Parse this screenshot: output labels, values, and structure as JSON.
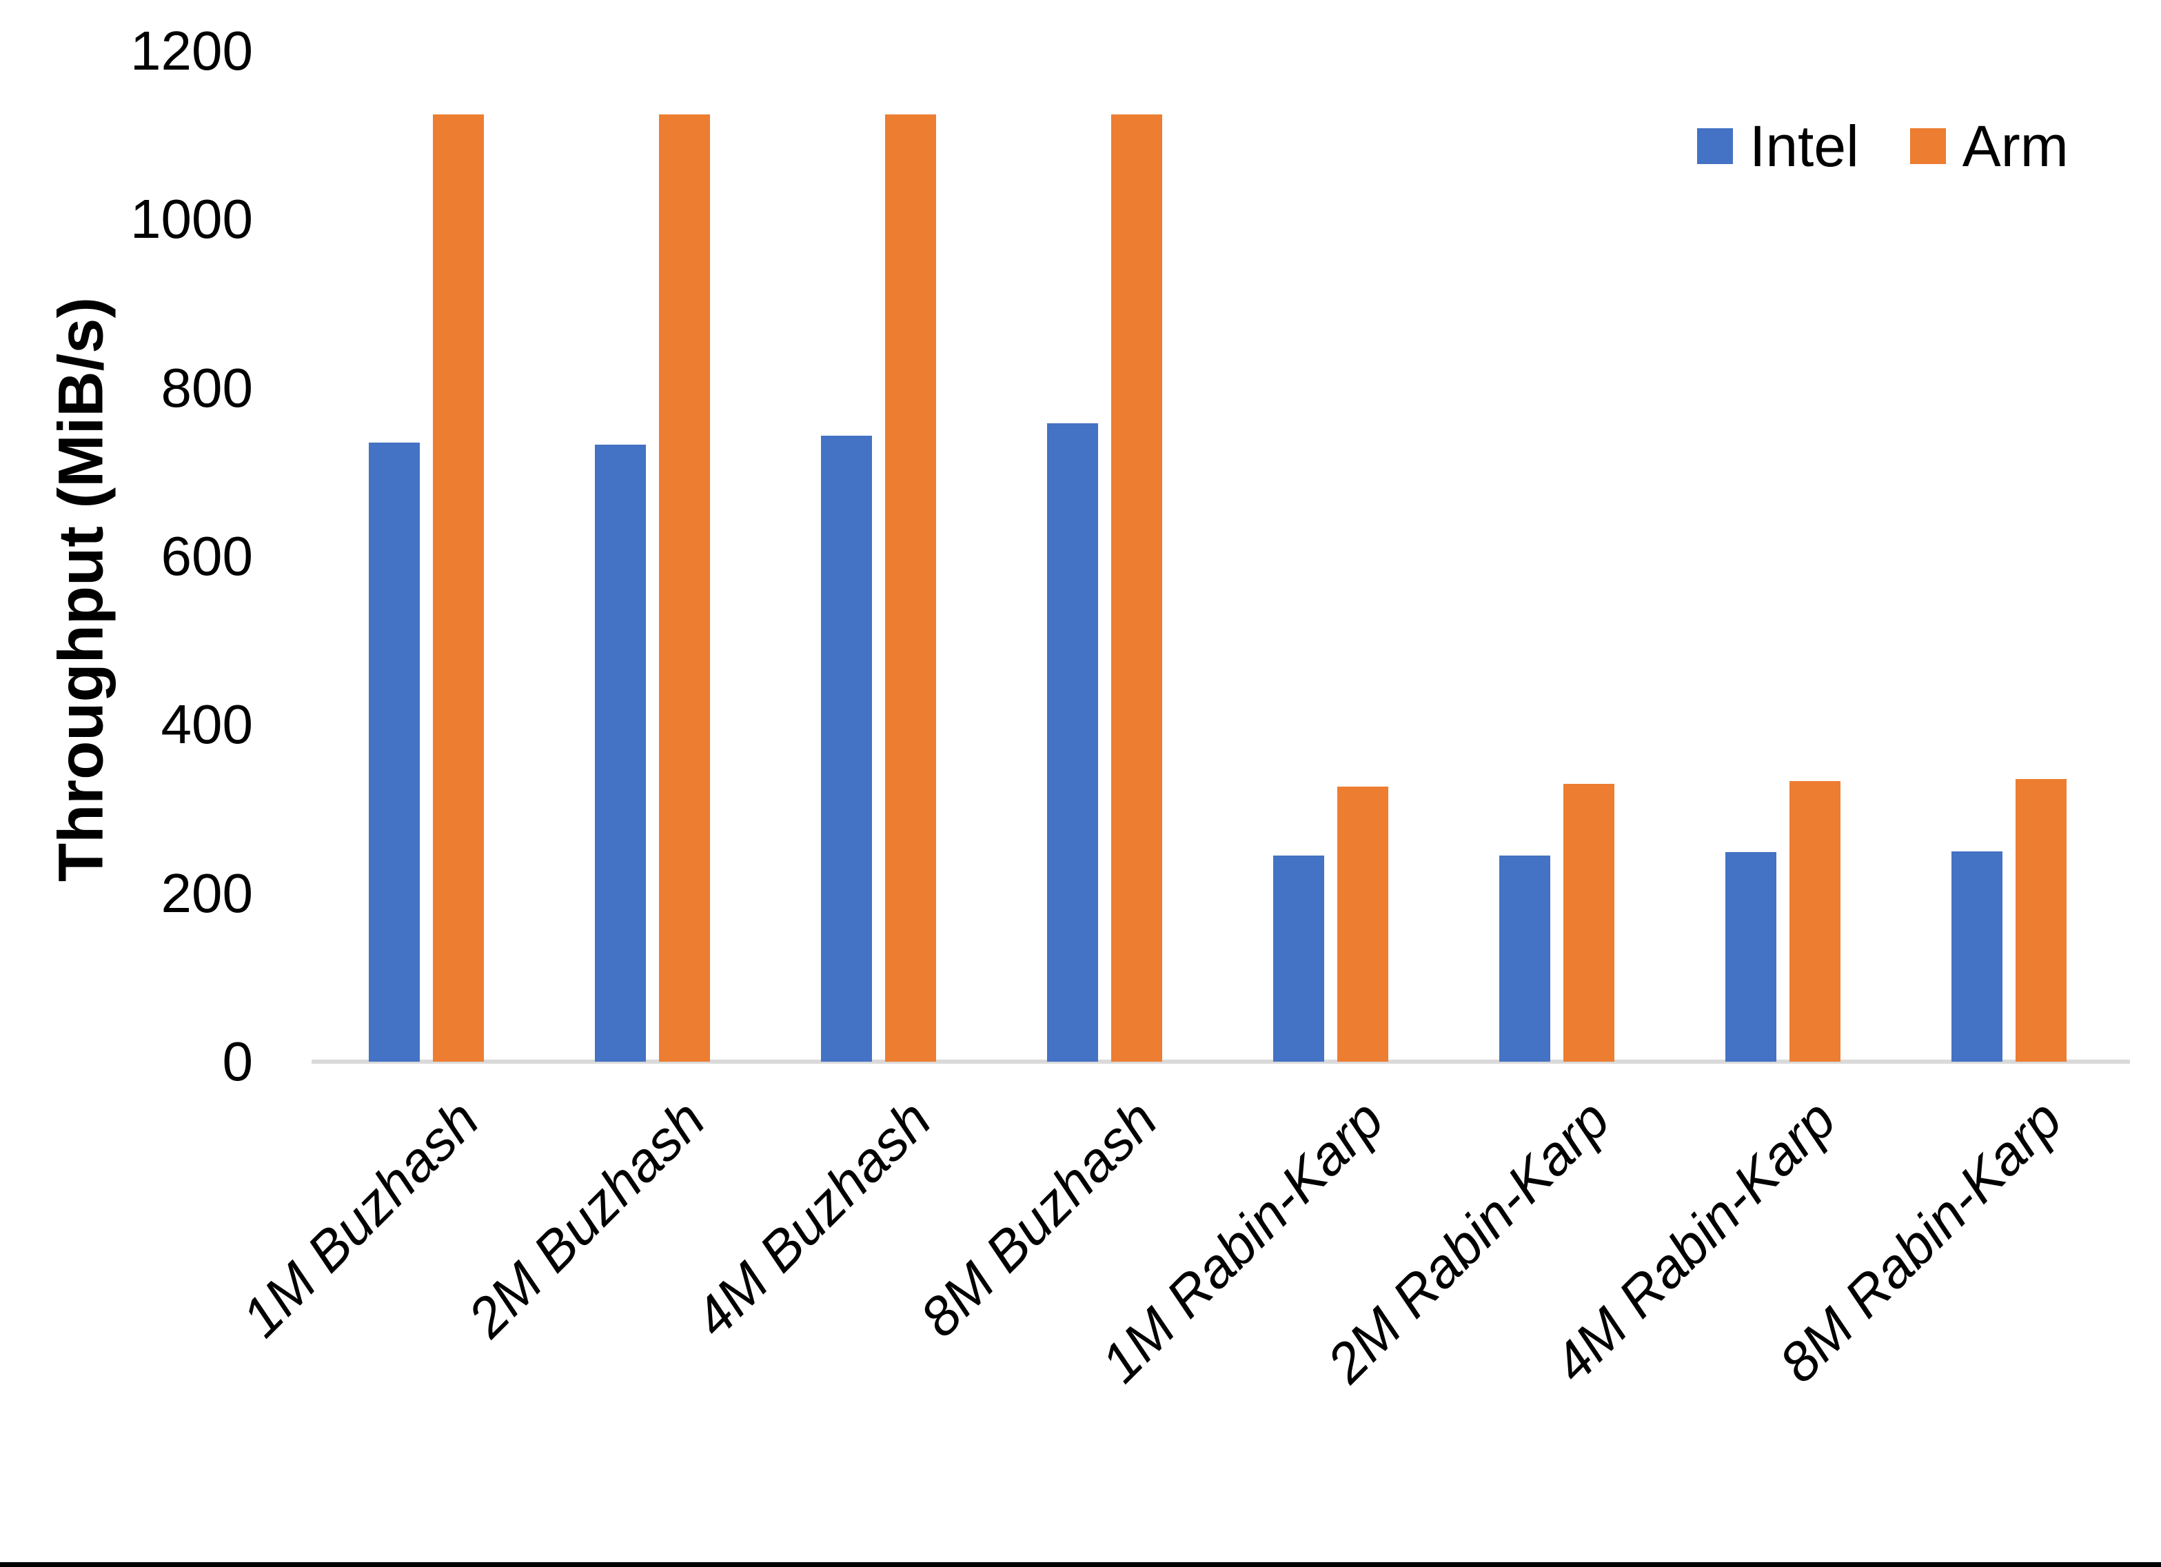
{
  "chart_data": {
    "type": "bar",
    "title": "",
    "xlabel": "",
    "ylabel": "Throughput (MiB/s)",
    "categories": [
      "1M Buzhash",
      "2M Buzhash",
      "4M Buzhash",
      "8M Buzhash",
      "1M Rabin-Karp",
      "2M Rabin-Karp",
      "4M Rabin-Karp",
      "8M Rabin-Karp"
    ],
    "series": [
      {
        "name": "Intel",
        "color": "#4472C4",
        "values": [
          735,
          733,
          743,
          758,
          245,
          245,
          249,
          250
        ]
      },
      {
        "name": "Arm",
        "color": "#ED7D31",
        "values": [
          1125,
          1125,
          1125,
          1125,
          327,
          330,
          333,
          336
        ]
      }
    ],
    "ylim": [
      0,
      1200
    ],
    "yticks": [
      0,
      200,
      400,
      600,
      800,
      1000,
      1200
    ],
    "grid": false,
    "legend_position": "top-right"
  },
  "legend": {
    "items": [
      {
        "label": "Intel",
        "color": "#4472C4"
      },
      {
        "label": "Arm",
        "color": "#ED7D31"
      }
    ]
  },
  "colors": {
    "background": "#FFFFFF",
    "axis_line": "#D9D9D9",
    "text": "#000000",
    "intel_bar": "#4472C4",
    "arm_bar": "#ED7D31",
    "page_bottom_edge": "#000000"
  }
}
